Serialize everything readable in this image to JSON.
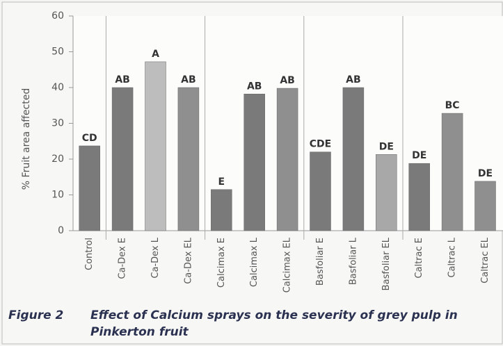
{
  "chart_data": {
    "type": "bar",
    "ylabel": "% Fruit area affected",
    "categories": [
      "Control",
      "Ca-Dex E",
      "Ca-Dex L",
      "Ca-Dex EL",
      "Calcimax E",
      "Calcimax L",
      "Calcimax EL",
      "Basfoliar E",
      "Basfoliar L",
      "Basfoliar EL",
      "Caltrac E",
      "Caltrac L",
      "Caltrac EL"
    ],
    "values": [
      23.7,
      40,
      47.2,
      40,
      11.5,
      38.2,
      39.8,
      22,
      40,
      21.3,
      18.8,
      32.8,
      13.8
    ],
    "annotations": [
      "CD",
      "AB",
      "A",
      "AB",
      "E",
      "AB",
      "AB",
      "CDE",
      "AB",
      "DE",
      "DE",
      "BC",
      "DE"
    ],
    "colors": [
      "#7a7a7a",
      "#7a7a7a",
      "#bdbdbd",
      "#8f8f8f",
      "#7a7a7a",
      "#7a7a7a",
      "#8f8f8f",
      "#7a7a7a",
      "#7a7a7a",
      "#a8a8a8",
      "#7a7a7a",
      "#8f8f8f",
      "#8f8f8f"
    ],
    "ylim": [
      0,
      60
    ],
    "yticks": [
      0,
      10,
      20,
      30,
      40,
      50,
      60
    ],
    "caption_label": "Figure 2",
    "caption": [
      "Effect of Calcium sprays on the severity of grey pulp in",
      "Pinkerton fruit"
    ]
  }
}
